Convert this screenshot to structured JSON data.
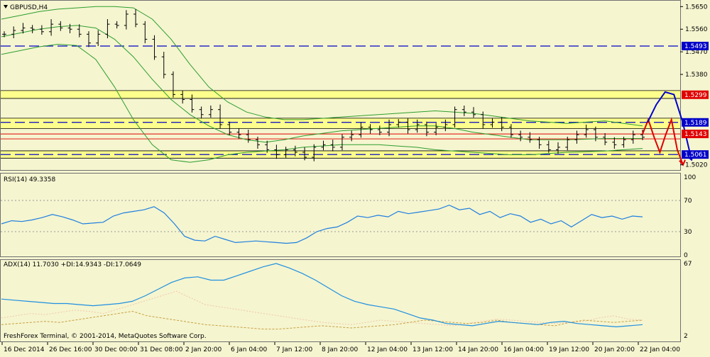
{
  "colors": {
    "background": "#F5F5D0",
    "candles": "#000000",
    "bollinger": "#2E9E2E",
    "support_resistance": "#0000C8",
    "yellow_zone": "#FFFF80",
    "red_level": "#E00000",
    "rsi_line": "#1E7FE0",
    "adx_line": "#1E8FE0",
    "plus_di": "#F0C8A8",
    "minus_di": "#C8A040",
    "forecast_red": "#E00000",
    "forecast_blue": "#0000C8"
  },
  "main_panel": {
    "title": "GBPUSD,H4",
    "price_ticks": [
      "1.5650",
      "1.5560",
      "1.5470",
      "1.5380",
      "1.5020"
    ],
    "level_labels": [
      {
        "text": "1.5493",
        "style": "blue"
      },
      {
        "text": "1.5299",
        "style": "red"
      },
      {
        "text": "1.5189",
        "style": "blue"
      },
      {
        "text": "1.5143",
        "style": "red"
      },
      {
        "text": "1.5061",
        "style": "blue"
      }
    ],
    "rendered_level_labels": [
      "1.5493",
      "1.5299",
      "1.5​189",
      "1.5143",
      "1.50​61"
    ]
  },
  "rsi_panel": {
    "title": "RSI(14) 49.3358",
    "ticks": [
      "100",
      "70",
      "30",
      "0"
    ]
  },
  "adx_panel": {
    "title": "ADX(14) 11.7030 +DI:14.9343 -DI:17.0649",
    "ticks": [
      "67",
      "2"
    ],
    "copyright": "FreshForex Terminal, © 2001-2014, MetaQuotes Software Corp."
  },
  "time_axis": {
    "labels": [
      "16 Dec 2014",
      "26 Dec 16:00",
      "30 Dec 00:00",
      "31 Dec 08:00",
      "2 Jan 20:00",
      "6 Jan 04:00",
      "7 Jan 12:00",
      "8 Jan 20:00",
      "12 Jan 04:00",
      "13 Jan 12:00",
      "14 Jan 20:00",
      "16 Jan 04:00",
      "19 Jan 12:00",
      "20 Jan 20:00",
      "22 Jan 04:00"
    ]
  },
  "chart_data": {
    "type": "candlestick",
    "symbol": "GBPUSD",
    "timeframe": "H4",
    "y_range": [
      1.5005,
      1.5665
    ],
    "horizontal_levels": {
      "dashed_blue": [
        1.5493,
        1.5189,
        1.5061
      ],
      "red": [
        1.5143
      ],
      "yellow_zones": [
        [
          1.529,
          1.531
        ],
        [
          1.517,
          1.52
        ],
        [
          1.5052,
          1.507
        ]
      ]
    },
    "close_path": [
      1.554,
      1.5555,
      1.5565,
      1.556,
      1.555,
      1.558,
      1.5565,
      1.556,
      1.554,
      1.5505,
      1.554,
      1.558,
      1.5575,
      1.562,
      1.558,
      1.552,
      1.545,
      1.538,
      1.53,
      1.528,
      1.524,
      1.522,
      1.524,
      1.518,
      1.515,
      1.514,
      1.512,
      1.51,
      1.508,
      1.506,
      1.508,
      1.507,
      1.505,
      1.509,
      1.51,
      1.509,
      1.513,
      1.514,
      1.517,
      1.516,
      1.515,
      1.518,
      1.519,
      1.516,
      1.518,
      1.515,
      1.517,
      1.518,
      1.524,
      1.523,
      1.522,
      1.518,
      1.519,
      1.517,
      1.514,
      1.513,
      1.512,
      1.51,
      1.508,
      1.509,
      1.512,
      1.514,
      1.516,
      1.513,
      1.511,
      1.51,
      1.512,
      1.514,
      1.513
    ],
    "bb_upper": [
      1.56,
      1.5615,
      1.563,
      1.564,
      1.5645,
      1.565,
      1.565,
      1.5645,
      1.56,
      1.552,
      1.542,
      1.533,
      1.527,
      1.523,
      1.521,
      1.52,
      1.52,
      1.5205,
      1.521,
      1.5215,
      1.522,
      1.5225,
      1.523,
      1.5235,
      1.523,
      1.5225,
      1.5215,
      1.5205,
      1.5195,
      1.519,
      1.5185,
      1.519,
      1.5195,
      1.5185,
      1.5175
    ],
    "bb_middle": [
      1.553,
      1.5545,
      1.556,
      1.557,
      1.5575,
      1.5565,
      1.552,
      1.545,
      1.536,
      1.528,
      1.522,
      1.5175,
      1.514,
      1.512,
      1.511,
      1.512,
      1.5135,
      1.5145,
      1.5155,
      1.516,
      1.5165,
      1.517,
      1.5175,
      1.5175,
      1.5165,
      1.515,
      1.514,
      1.513,
      1.512,
      1.512,
      1.512,
      1.5122,
      1.5125,
      1.5125,
      1.5125
    ],
    "bb_lower": [
      1.546,
      1.5475,
      1.549,
      1.55,
      1.5495,
      1.544,
      1.533,
      1.52,
      1.51,
      1.504,
      1.503,
      1.504,
      1.506,
      1.507,
      1.5075,
      1.508,
      1.509,
      1.5095,
      1.51,
      1.51,
      1.51,
      1.5095,
      1.509,
      1.508,
      1.5075,
      1.507,
      1.5065,
      1.506,
      1.506,
      1.5065,
      1.507,
      1.5072,
      1.5075,
      1.508,
      1.5085
    ],
    "forecast_red": [
      1.5143,
      1.52,
      1.513,
      1.507,
      1.514,
      1.52,
      1.508,
      1.502
    ],
    "forecast_blue": [
      1.5189,
      1.526,
      1.531,
      1.53,
      1.5189,
      1.504
    ],
    "rsi": {
      "range": [
        0,
        100
      ],
      "levels": [
        70,
        30
      ],
      "values": [
        40,
        44,
        43,
        45,
        48,
        52,
        49,
        45,
        40,
        41,
        42,
        50,
        54,
        56,
        58,
        62,
        54,
        40,
        24,
        19,
        18,
        24,
        20,
        16,
        17,
        18,
        17,
        16,
        15,
        16,
        22,
        30,
        34,
        36,
        42,
        50,
        48,
        51,
        49,
        56,
        53,
        55,
        57,
        59,
        64,
        58,
        60,
        52,
        56,
        48,
        53,
        50,
        42,
        46,
        40,
        44,
        36,
        44,
        52,
        48,
        50,
        46,
        50,
        49
      ]
    },
    "adx": {
      "values": [
        35,
        34,
        33,
        32,
        31,
        31,
        30,
        29,
        30,
        31,
        33,
        38,
        44,
        50,
        54,
        55,
        52,
        52,
        56,
        60,
        64,
        67,
        63,
        58,
        52,
        45,
        38,
        33,
        30,
        28,
        26,
        22,
        18,
        16,
        13,
        12,
        11,
        13,
        15,
        14,
        13,
        12,
        14,
        15,
        13,
        12,
        11,
        10,
        11,
        12
      ],
      "plus_di_values": [
        18,
        20,
        22,
        21,
        23,
        25,
        24,
        22,
        26,
        30,
        34,
        38,
        42,
        36,
        30,
        28,
        26,
        24,
        22,
        20,
        18,
        16,
        14,
        13,
        12,
        14,
        16,
        15,
        14,
        13,
        12,
        11,
        13,
        15,
        17,
        16,
        15,
        14,
        13,
        14,
        15,
        18,
        20,
        17,
        16
      ],
      "minus_di_values": [
        12,
        13,
        14,
        15,
        14,
        16,
        18,
        20,
        22,
        24,
        20,
        18,
        16,
        14,
        12,
        11,
        10,
        9,
        8,
        8,
        9,
        10,
        11,
        10,
        9,
        10,
        11,
        12,
        14,
        16,
        15,
        14,
        13,
        14,
        16,
        14,
        13,
        12,
        11,
        14,
        16,
        15,
        14,
        15,
        16
      ]
    }
  }
}
